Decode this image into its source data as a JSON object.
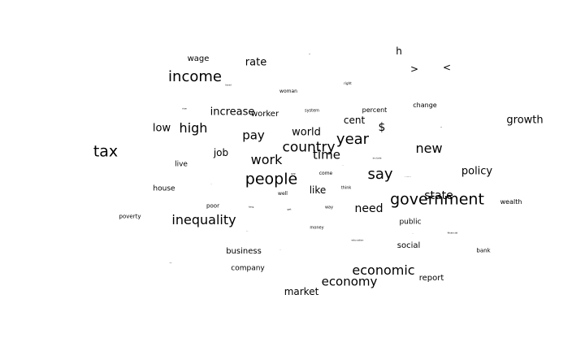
{
  "words": [
    {
      "text": "tax",
      "weight": 1.0
    },
    {
      "text": "government",
      "weight": 1.0
    },
    {
      "text": "people",
      "weight": 0.98
    },
    {
      "text": "income",
      "weight": 0.95
    },
    {
      "text": "say",
      "weight": 0.95
    },
    {
      "text": "year",
      "weight": 0.95
    },
    {
      "text": "country",
      "weight": 0.85
    },
    {
      "text": "work",
      "weight": 0.8
    },
    {
      "text": "new",
      "weight": 0.8
    },
    {
      "text": "economic",
      "weight": 0.8
    },
    {
      "text": "inequality",
      "weight": 0.8
    },
    {
      "text": "high",
      "weight": 0.8
    },
    {
      "text": "time",
      "weight": 0.72
    },
    {
      "text": "economy",
      "weight": 0.72
    },
    {
      "text": "pay",
      "weight": 0.7
    },
    {
      "text": "need",
      "weight": 0.68
    },
    {
      "text": "state",
      "weight": 0.66
    },
    {
      "text": "$",
      "weight": 0.6
    },
    {
      "text": "increase",
      "weight": 0.6
    },
    {
      "text": "growth",
      "weight": 0.6
    },
    {
      "text": "policy",
      "weight": 0.55
    },
    {
      "text": "world",
      "weight": 0.55
    },
    {
      "text": "rate",
      "weight": 0.55
    },
    {
      "text": "low",
      "weight": 0.5
    },
    {
      "text": "market",
      "weight": 0.48
    },
    {
      "text": "job",
      "weight": 0.47
    },
    {
      "text": "like",
      "weight": 0.47
    },
    {
      "text": "cent",
      "weight": 0.46
    },
    {
      "text": "h",
      "weight": 0.45
    },
    {
      "text": ">",
      "weight": 0.45
    },
    {
      "text": "<",
      "weight": 0.45
    },
    {
      "text": "worker",
      "weight": 0.38
    },
    {
      "text": "business",
      "weight": 0.38
    },
    {
      "text": "wage",
      "weight": 0.36
    },
    {
      "text": "report",
      "weight": 0.36
    },
    {
      "text": "social",
      "weight": 0.34
    },
    {
      "text": "live",
      "weight": 0.32
    },
    {
      "text": "company",
      "weight": 0.3
    },
    {
      "text": "public",
      "weight": 0.3
    },
    {
      "text": "house",
      "weight": 0.3
    },
    {
      "text": "percent",
      "weight": 0.28
    },
    {
      "text": "change",
      "weight": 0.28
    },
    {
      "text": "wealth",
      "weight": 0.28
    },
    {
      "text": "poverty",
      "weight": 0.22
    },
    {
      "text": "bank",
      "weight": 0.22
    },
    {
      "text": "woman",
      "weight": 0.2
    },
    {
      "text": "well",
      "weight": 0.2
    },
    {
      "text": "poor",
      "weight": 0.2
    },
    {
      "text": "system",
      "weight": 0.18
    },
    {
      "text": "come",
      "weight": 0.2
    },
    {
      "text": "think",
      "weight": 0.18
    },
    {
      "text": "way",
      "weight": 0.16
    },
    {
      "text": "money",
      "weight": 0.16
    },
    {
      "text": "right",
      "weight": 0.12
    },
    {
      "text": "level",
      "weight": 0.1
    },
    {
      "text": "rise",
      "weight": 0.1
    },
    {
      "text": "long",
      "weight": 0.1
    },
    {
      "text": "get",
      "weight": 0.1
    },
    {
      "text": "include",
      "weight": 0.08
    },
    {
      "text": "education",
      "weight": 0.08
    },
    {
      "text": "financial",
      "weight": 0.08
    },
    {
      "text": "......",
      "weight": 0.08
    },
    {
      "text": "gap",
      "weight": 0.08
    },
    {
      "text": "-",
      "weight": 0.1
    },
    {
      "text": "-",
      "weight": 0.1
    },
    {
      "text": "-",
      "weight": 0.1
    },
    {
      "text": "-",
      "weight": 0.1
    },
    {
      "text": "...",
      "weight": 0.08
    },
    {
      "text": "-",
      "weight": 0.1
    },
    {
      "text": "--",
      "weight": 0.08
    },
    {
      "text": "-",
      "weight": 0.1
    }
  ]
}
